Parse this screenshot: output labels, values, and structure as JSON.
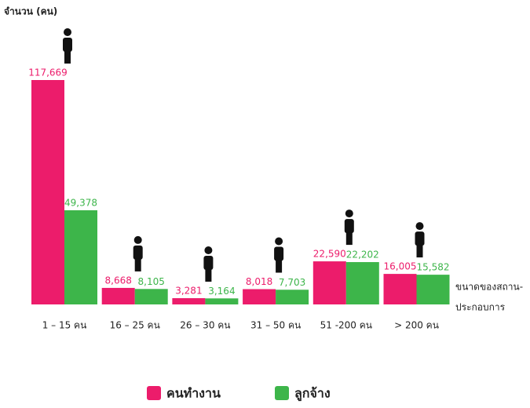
{
  "chart_data": {
    "type": "bar",
    "title": "จำนวน (คน)",
    "x_label": [
      "ขนาดของสถาน-",
      "ประกอบการ"
    ],
    "categories": [
      "1 – 15 คน",
      "16 – 25 คน",
      "26 – 30 คน",
      "31 – 50 คน",
      "51 -200 คน",
      "> 200 คน"
    ],
    "series": [
      {
        "name": "คนทำงาน",
        "color": "#ec1c6b",
        "values": [
          117669,
          8668,
          3281,
          8018,
          22590,
          16005
        ],
        "value_labels": [
          "117,669",
          "8,668",
          "3,281",
          "8,018",
          "22,590",
          "16,005"
        ]
      },
      {
        "name": "ลูกจ้าง",
        "color": "#3db54a",
        "values": [
          49378,
          8105,
          3164,
          7703,
          22202,
          15582
        ],
        "value_labels": [
          "49,378",
          "8,105",
          "3,164",
          "7,703",
          "22,202",
          "15,582"
        ]
      }
    ]
  }
}
